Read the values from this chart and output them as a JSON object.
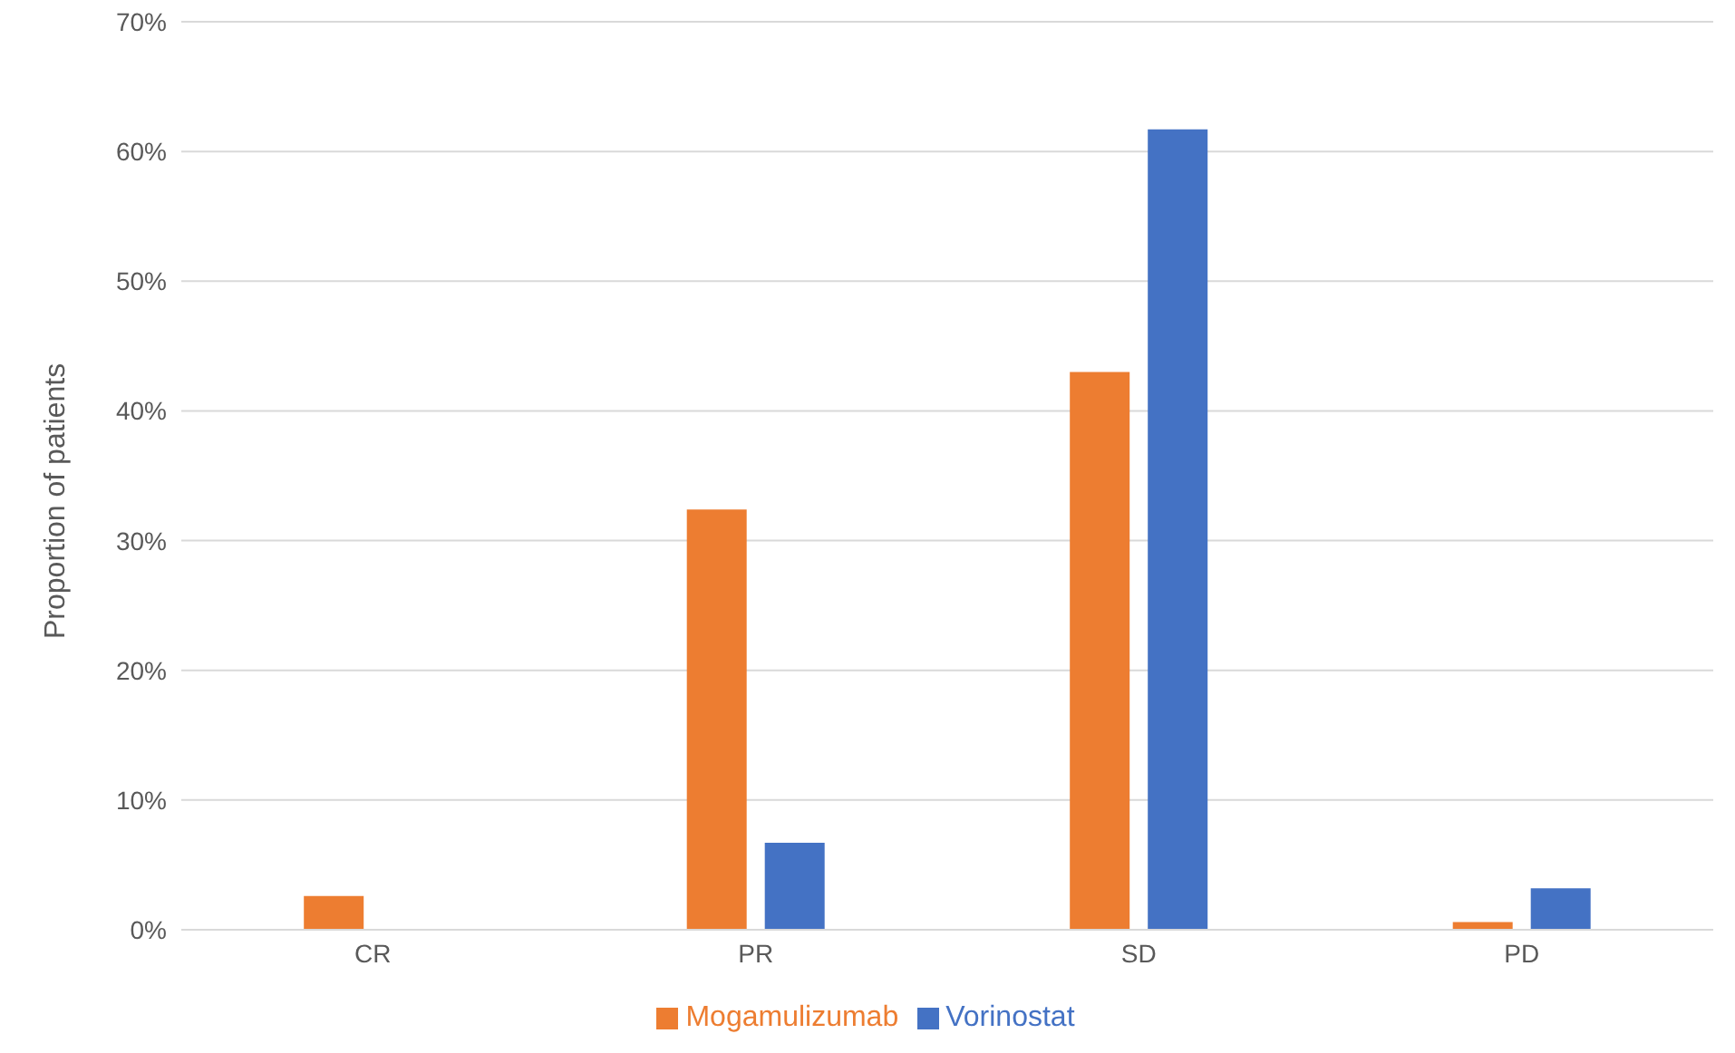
{
  "chart_data": {
    "type": "bar",
    "ylabel": "Proportion of patients",
    "categories": [
      "CR",
      "PR",
      "SD",
      "PD"
    ],
    "series": [
      {
        "name": "Mogamulizumab",
        "color": "#ed7d31",
        "values": [
          2.6,
          32.4,
          43,
          0.6
        ]
      },
      {
        "name": "Vorinostat",
        "color": "#4472c4",
        "values": [
          0,
          6.7,
          61.7,
          3.2
        ]
      }
    ],
    "ylim": [
      0,
      70
    ],
    "yticks": [
      {
        "value": 0,
        "label": "0%"
      },
      {
        "value": 10,
        "label": "10%"
      },
      {
        "value": 20,
        "label": "20%"
      },
      {
        "value": 30,
        "label": "30%"
      },
      {
        "value": 40,
        "label": "40%"
      },
      {
        "value": 50,
        "label": "50%"
      },
      {
        "value": 60,
        "label": "60%"
      },
      {
        "value": 70,
        "label": "70%"
      }
    ],
    "grid": "y",
    "legend": "bottom"
  }
}
